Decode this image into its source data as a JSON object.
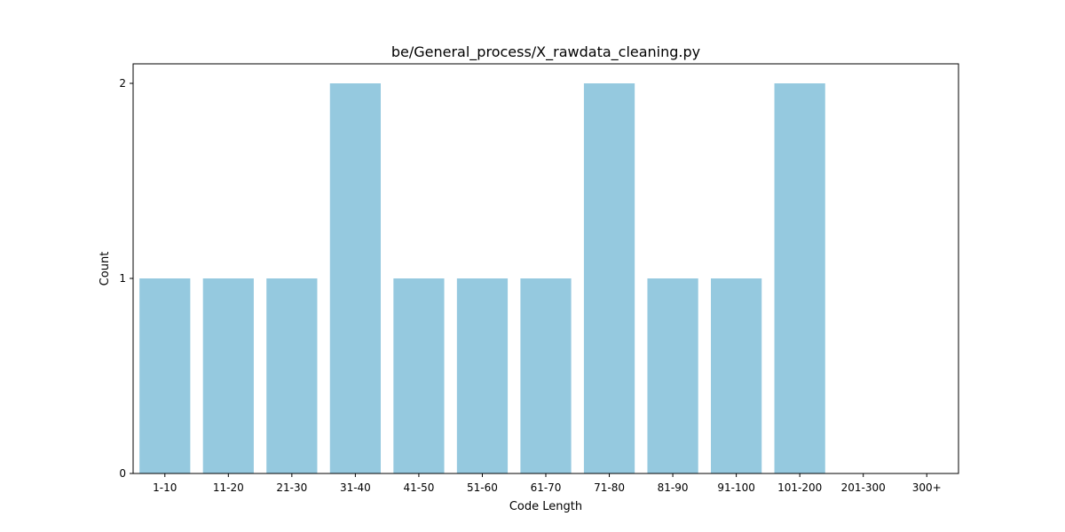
{
  "chart_data": {
    "type": "bar",
    "title": "be/General_process/X_rawdata_cleaning.py",
    "xlabel": "Code Length",
    "ylabel": "Count",
    "categories": [
      "1-10",
      "11-20",
      "21-30",
      "31-40",
      "41-50",
      "51-60",
      "61-70",
      "71-80",
      "81-90",
      "91-100",
      "101-200",
      "201-300",
      "300+"
    ],
    "values": [
      1,
      1,
      1,
      2,
      1,
      1,
      1,
      2,
      1,
      1,
      2,
      0,
      0
    ],
    "yticks": [
      0,
      1,
      2
    ],
    "ylim": [
      0,
      2.1
    ],
    "bar_color": "#95c9df",
    "grid": false,
    "legend": "none"
  }
}
